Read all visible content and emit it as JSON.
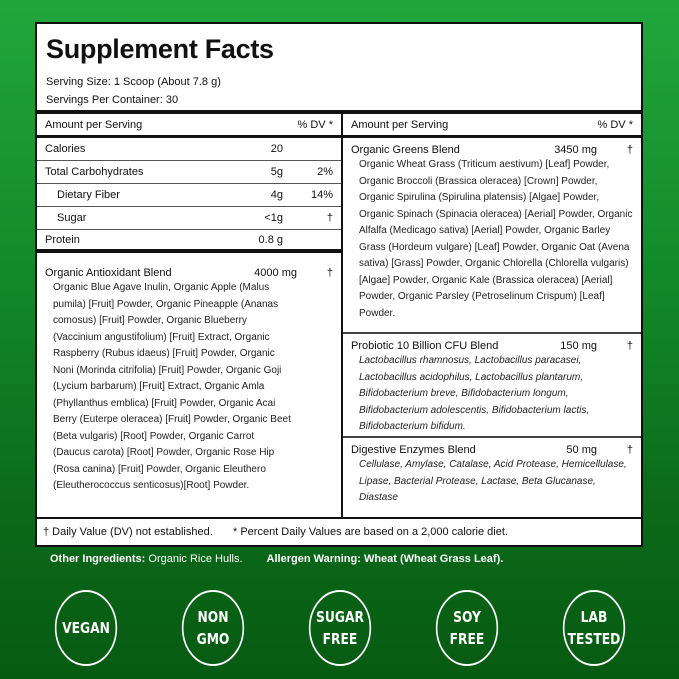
{
  "title": "Supplement Facts",
  "serving_size": "Serving Size: 1 Scoop (About 7.8 g)",
  "servings_per_container": "Servings Per Container: 30",
  "col_header": {
    "amount": "Amount per Serving",
    "dv": "% DV *"
  },
  "nutrients": [
    {
      "name": "Calories",
      "amount": "20",
      "dv": ""
    },
    {
      "name": "Total Carbohydrates",
      "amount": "5g",
      "dv": "2%"
    },
    {
      "name": "Dietary Fiber",
      "amount": "4g",
      "dv": "14%"
    },
    {
      "name": "Sugar",
      "amount": "<1g",
      "dv": "†"
    },
    {
      "name": "Protein",
      "amount": "0.8 g",
      "dv": ""
    }
  ],
  "blends": [
    {
      "name": "Organic Antioxidant Blend",
      "amount": "4000 mg",
      "dv": "†",
      "ingredients": "Organic Blue Agave Inulin, Organic Apple (Malus pumila) [Fruit] Powder, Organic Pineapple (Ananas comosus) [Fruit] Powder, Organic Blueberry (Vaccinium angustifolium) [Fruit] Extract, Organic Raspberry (Rubus idaeus) [Fruit] Powder, Organic Noni (Morinda citrifolia) [Fruit] Powder, Organic Goji (Lycium barbarum) [Fruit] Extract, Organic Amla (Phyllanthus emblica) [Fruit] Powder, Organic Acai Berry (Euterpe oleracea) [Fruit] Powder, Organic Beet (Beta vulgaris) [Root] Powder, Organic Carrot (Daucus carota) [Root] Powder, Organic Rose Hip (Rosa canina) [Fruit] Powder, Organic Eleuthero (Eleutherococcus senticosus)[Root] Powder."
    },
    {
      "name": "Organic Greens Blend",
      "amount": "3450 mg",
      "dv": "†",
      "ingredients": "Organic Wheat Grass (Triticum aestivum) [Leaf] Powder, Organic Broccoli (Brassica oleracea) [Crown] Powder, Organic Spirulina (Spirulina platensis) [Algae] Powder, Organic Spinach (Spinacia oleracea) [Aerial] Powder, Organic Alfalfa (Medicago sativa) [Aerial] Powder, Organic Barley Grass (Hordeum vulgare) [Leaf] Powder, Organic Oat (Avena sativa) [Grass] Powder, Organic Chlorella (Chlorella vulgaris) [Algae] Powder, Organic Kale (Brassica oleracea) [Aerial] Powder, Organic Parsley (Petroselinum Crispum) [Leaf] Powder."
    },
    {
      "name": "Probiotic 10 Billion CFU Blend",
      "amount": "150 mg",
      "dv": "†",
      "ingredients": "Lactobacillus rhamnosus, Lactobacillus paracasei, Lactobacillus acidophilus, Lactobacillus plantarum, Bifidobacterium breve, Bifidobacterium longum, Bifidobacterium adolescentis, Bifidobacterium lactis, Bifidobacterium bifidum."
    },
    {
      "name": "Digestive Enzymes Blend",
      "amount": "50 mg",
      "dv": "†",
      "ingredients": "Cellulase, Amylase, Catalase, Acid Protease, Hemicellulase, Lipase, Bacterial Protease, Lactase, Beta Glucanase, Diastase"
    }
  ],
  "footnotes": {
    "dagger": "† Daily Value (DV) not established.",
    "percent": "* Percent Daily Values are based on a 2,000 calorie diet."
  },
  "other_ingredients": {
    "label": "Other Ingredients:",
    "value": "Organic Rice Hulls."
  },
  "allergen": {
    "label": "Allergen Warning:",
    "value": "Wheat (Wheat Grass Leaf)."
  },
  "badges": [
    [
      "VEGAN"
    ],
    [
      "NON",
      "GMO"
    ],
    [
      "SUGAR",
      "FREE"
    ],
    [
      "SOY",
      "FREE"
    ],
    [
      "LAB",
      "TESTED"
    ]
  ],
  "colors": {
    "bg_top": "#22a63c",
    "bg_bottom": "#075a12"
  }
}
